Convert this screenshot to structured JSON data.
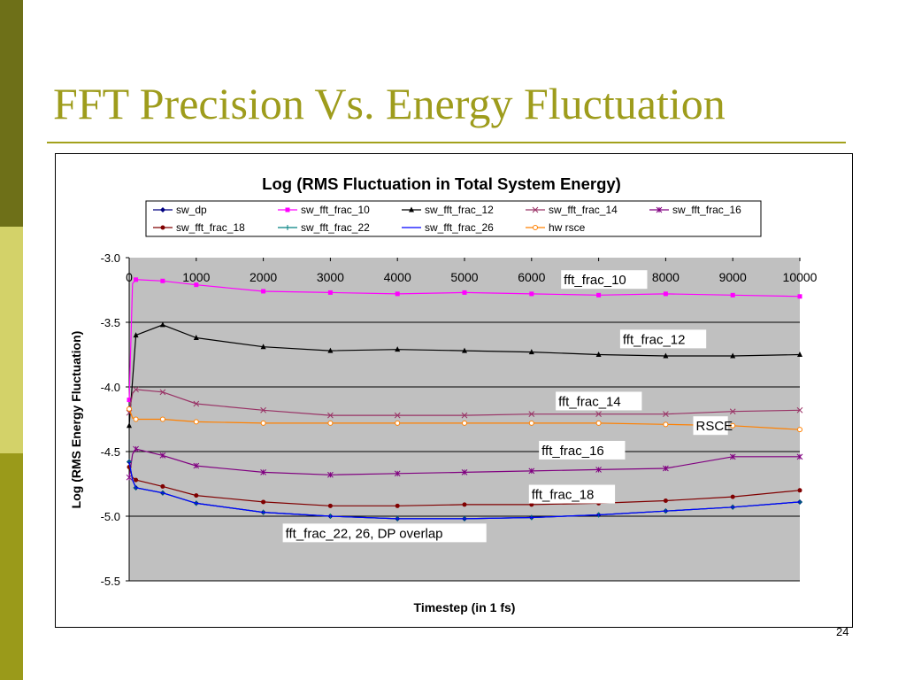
{
  "slide": {
    "title": "FFT Precision Vs. Energy Fluctuation",
    "page_number": "24"
  },
  "colors": {
    "band_top": "#6e7018",
    "band_middle": "#d3d269",
    "band_bottom": "#9a9a1a",
    "title": "#9e9c1c",
    "plot_background": "#c0c0c0"
  },
  "chart_data": {
    "type": "line",
    "title": "Log (RMS Fluctuation in Total System Energy)",
    "xlabel": "Timestep (in 1 fs)",
    "ylabel": "Log (RMS Energy Fluctuation)",
    "xlim": [
      0,
      10000
    ],
    "ylim": [
      -5.5,
      -3.0
    ],
    "x_ticks": [
      "0",
      "1000",
      "2000",
      "3000",
      "4000",
      "5000",
      "6000",
      "7000",
      "8000",
      "9000",
      "10000"
    ],
    "y_ticks": [
      "-3.0",
      "-3.5",
      "-4.0",
      "-4.5",
      "-5.0",
      "-5.5"
    ],
    "grid": "horizontal",
    "legend_position": "top",
    "series": [
      {
        "name": "sw_dp",
        "color": "#000080",
        "marker": "diamond",
        "x": [
          0,
          50,
          100,
          500,
          1000,
          2000,
          3000,
          4000,
          5000,
          6000,
          7000,
          8000,
          9000,
          10000
        ],
        "y": [
          -4.58,
          -4.72,
          -4.78,
          -4.82,
          -4.9,
          -4.97,
          -5.0,
          -5.02,
          -5.02,
          -5.01,
          -4.99,
          -4.96,
          -4.93,
          -4.89
        ]
      },
      {
        "name": "sw_fft_frac_10",
        "color": "#ff00ff",
        "marker": "square",
        "x": [
          0,
          50,
          100,
          500,
          1000,
          2000,
          3000,
          4000,
          5000,
          6000,
          7000,
          8000,
          9000,
          10000
        ],
        "y": [
          -4.1,
          -3.2,
          -3.17,
          -3.18,
          -3.21,
          -3.26,
          -3.27,
          -3.28,
          -3.27,
          -3.28,
          -3.29,
          -3.28,
          -3.29,
          -3.3
        ]
      },
      {
        "name": "sw_fft_frac_12",
        "color": "#000000",
        "marker": "triangle",
        "x": [
          0,
          100,
          500,
          1000,
          2000,
          3000,
          4000,
          5000,
          6000,
          7000,
          8000,
          9000,
          10000
        ],
        "y": [
          -4.3,
          -3.6,
          -3.52,
          -3.62,
          -3.69,
          -3.72,
          -3.71,
          -3.72,
          -3.73,
          -3.75,
          -3.76,
          -3.76,
          -3.75
        ]
      },
      {
        "name": "sw_fft_frac_14",
        "color": "#993366",
        "marker": "x",
        "x": [
          0,
          50,
          100,
          500,
          1000,
          2000,
          3000,
          4000,
          5000,
          6000,
          7000,
          8000,
          9000,
          10000
        ],
        "y": [
          -4.2,
          -4.05,
          -4.02,
          -4.04,
          -4.13,
          -4.18,
          -4.22,
          -4.22,
          -4.22,
          -4.21,
          -4.21,
          -4.21,
          -4.19,
          -4.18
        ]
      },
      {
        "name": "sw_fft_frac_16",
        "color": "#800080",
        "marker": "star",
        "x": [
          0,
          50,
          100,
          500,
          1000,
          2000,
          3000,
          4000,
          5000,
          6000,
          7000,
          8000,
          9000,
          10000
        ],
        "y": [
          -4.7,
          -4.52,
          -4.48,
          -4.53,
          -4.61,
          -4.66,
          -4.68,
          -4.67,
          -4.66,
          -4.65,
          -4.64,
          -4.63,
          -4.54,
          -4.54
        ]
      },
      {
        "name": "sw_fft_frac_18",
        "color": "#800000",
        "marker": "circle",
        "x": [
          0,
          50,
          100,
          500,
          1000,
          2000,
          3000,
          4000,
          5000,
          6000,
          7000,
          8000,
          9000,
          10000
        ],
        "y": [
          -4.62,
          -4.7,
          -4.72,
          -4.77,
          -4.84,
          -4.89,
          -4.92,
          -4.92,
          -4.91,
          -4.91,
          -4.9,
          -4.88,
          -4.85,
          -4.8
        ]
      },
      {
        "name": "sw_fft_frac_22",
        "color": "#008080",
        "marker": "plus",
        "x": [
          0,
          50,
          100,
          500,
          1000,
          2000,
          3000,
          4000,
          5000,
          6000,
          7000,
          8000,
          9000,
          10000
        ],
        "y": [
          -4.58,
          -4.72,
          -4.78,
          -4.82,
          -4.9,
          -4.97,
          -5.0,
          -5.02,
          -5.02,
          -5.01,
          -4.99,
          -4.96,
          -4.93,
          -4.89
        ]
      },
      {
        "name": "sw_fft_frac_26",
        "color": "#0000ff",
        "marker": "none",
        "x": [
          0,
          50,
          100,
          500,
          1000,
          2000,
          3000,
          4000,
          5000,
          6000,
          7000,
          8000,
          9000,
          10000
        ],
        "y": [
          -4.58,
          -4.72,
          -4.78,
          -4.82,
          -4.9,
          -4.97,
          -5.0,
          -5.02,
          -5.02,
          -5.01,
          -4.99,
          -4.96,
          -4.93,
          -4.89
        ]
      },
      {
        "name": "hw rsce",
        "color": "#ff8000",
        "marker": "circle-open",
        "x": [
          0,
          50,
          100,
          500,
          1000,
          2000,
          3000,
          4000,
          5000,
          6000,
          7000,
          8000,
          9000,
          10000
        ],
        "y": [
          -4.17,
          -4.24,
          -4.25,
          -4.25,
          -4.27,
          -4.28,
          -4.28,
          -4.28,
          -4.28,
          -4.28,
          -4.28,
          -4.29,
          -4.3,
          -4.33
        ]
      }
    ],
    "annotations": [
      {
        "text": "fft_frac_10",
        "x": 6480,
        "y": -3.2
      },
      {
        "text": "fft_frac_12",
        "x": 7360,
        "y": -3.66
      },
      {
        "text": "fft_frac_14",
        "x": 6400,
        "y": -4.14
      },
      {
        "text": "RSCE",
        "x": 8450,
        "y": -4.33
      },
      {
        "text": "fft_frac_16",
        "x": 6150,
        "y": -4.52
      },
      {
        "text": "fft_frac_18",
        "x": 6000,
        "y": -4.86
      },
      {
        "text": "fft_frac_22, 26, DP overlap",
        "x": 2330,
        "y": -5.16
      }
    ]
  }
}
